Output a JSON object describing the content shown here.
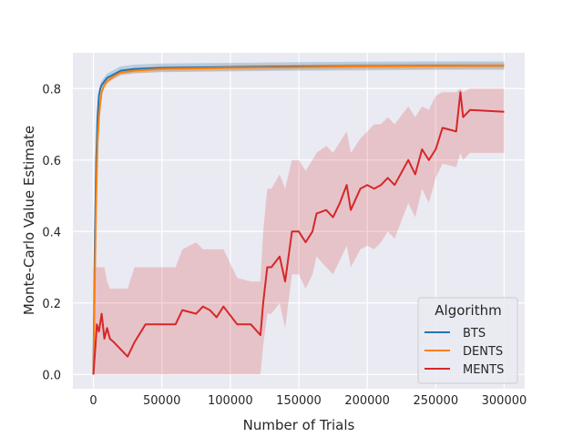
{
  "chart_data": {
    "type": "line",
    "title": "",
    "xlabel": "Number of Trials",
    "ylabel": "Monte-Carlo Value Estimate",
    "xlim": [
      -15000,
      315000
    ],
    "ylim": [
      -0.04,
      0.9
    ],
    "xticks": [
      0,
      50000,
      100000,
      150000,
      200000,
      250000,
      300000
    ],
    "xtick_labels": [
      "0",
      "50000",
      "100000",
      "150000",
      "200000",
      "250000",
      "300000"
    ],
    "yticks": [
      0.0,
      0.2,
      0.4,
      0.6,
      0.8
    ],
    "ytick_labels": [
      "0.0",
      "0.2",
      "0.4",
      "0.6",
      "0.8"
    ],
    "grid": true,
    "background": "#eaeaf2",
    "legend": {
      "title": "Algorithm",
      "placement": "lower-right"
    },
    "series": [
      {
        "name": "BTS",
        "color": "#1f77b4",
        "x": [
          0,
          1000,
          2000,
          3000,
          4000,
          5000,
          6000,
          8000,
          10000,
          15000,
          20000,
          30000,
          50000,
          100000,
          150000,
          200000,
          250000,
          300000
        ],
        "y": [
          0.0,
          0.35,
          0.6,
          0.72,
          0.78,
          0.8,
          0.81,
          0.82,
          0.83,
          0.84,
          0.85,
          0.855,
          0.858,
          0.86,
          0.862,
          0.863,
          0.864,
          0.864
        ],
        "band_width": 0.012
      },
      {
        "name": "DENTS",
        "color": "#ff7f0e",
        "x": [
          0,
          1000,
          2000,
          3000,
          4000,
          5000,
          6000,
          8000,
          10000,
          15000,
          20000,
          30000,
          50000,
          100000,
          150000,
          200000,
          250000,
          300000
        ],
        "y": [
          0.0,
          0.25,
          0.5,
          0.65,
          0.72,
          0.76,
          0.79,
          0.81,
          0.82,
          0.835,
          0.845,
          0.85,
          0.855,
          0.858,
          0.86,
          0.862,
          0.863,
          0.864
        ],
        "band_width": 0.008
      },
      {
        "name": "MENTS",
        "color": "#d62728",
        "band_color": "#d62728",
        "x": [
          0,
          1500,
          2500,
          4000,
          6000,
          8000,
          10000,
          12000,
          15000,
          25000,
          30000,
          38000,
          60000,
          65000,
          75000,
          80000,
          85000,
          90000,
          95000,
          105000,
          115000,
          122000,
          124000,
          127000,
          130000,
          136000,
          140000,
          145000,
          150000,
          155000,
          160000,
          163000,
          170000,
          175000,
          180000,
          185000,
          188000,
          195000,
          200000,
          205000,
          210000,
          215000,
          220000,
          230000,
          235000,
          240000,
          245000,
          250000,
          255000,
          265000,
          268000,
          270000,
          275000,
          300000
        ],
        "y": [
          0.0,
          0.08,
          0.14,
          0.12,
          0.17,
          0.1,
          0.13,
          0.1,
          0.09,
          0.05,
          0.09,
          0.14,
          0.14,
          0.18,
          0.17,
          0.19,
          0.18,
          0.16,
          0.19,
          0.14,
          0.14,
          0.11,
          0.2,
          0.3,
          0.3,
          0.33,
          0.26,
          0.4,
          0.4,
          0.37,
          0.4,
          0.45,
          0.46,
          0.44,
          0.48,
          0.53,
          0.46,
          0.52,
          0.53,
          0.52,
          0.53,
          0.55,
          0.53,
          0.6,
          0.56,
          0.63,
          0.6,
          0.63,
          0.69,
          0.68,
          0.79,
          0.72,
          0.74,
          0.735
        ],
        "band_lower": [
          0.0,
          0.0,
          0.0,
          0.0,
          0.0,
          0.0,
          0.0,
          0.0,
          0.0,
          0.0,
          0.0,
          0.0,
          0.0,
          0.0,
          0.0,
          0.0,
          0.0,
          0.0,
          0.0,
          0.0,
          0.0,
          0.0,
          0.08,
          0.17,
          0.17,
          0.2,
          0.13,
          0.28,
          0.28,
          0.24,
          0.28,
          0.33,
          0.3,
          0.28,
          0.32,
          0.36,
          0.3,
          0.35,
          0.36,
          0.35,
          0.37,
          0.4,
          0.38,
          0.48,
          0.44,
          0.52,
          0.48,
          0.55,
          0.59,
          0.58,
          0.62,
          0.6,
          0.62,
          0.62
        ],
        "band_upper": [
          0.3,
          0.3,
          0.3,
          0.3,
          0.3,
          0.3,
          0.26,
          0.24,
          0.24,
          0.24,
          0.3,
          0.3,
          0.3,
          0.35,
          0.37,
          0.35,
          0.35,
          0.35,
          0.35,
          0.27,
          0.26,
          0.26,
          0.4,
          0.52,
          0.52,
          0.56,
          0.52,
          0.6,
          0.6,
          0.57,
          0.6,
          0.62,
          0.64,
          0.62,
          0.65,
          0.68,
          0.62,
          0.66,
          0.68,
          0.7,
          0.7,
          0.72,
          0.7,
          0.75,
          0.72,
          0.75,
          0.74,
          0.78,
          0.79,
          0.79,
          0.8,
          0.79,
          0.8,
          0.8
        ]
      }
    ]
  }
}
